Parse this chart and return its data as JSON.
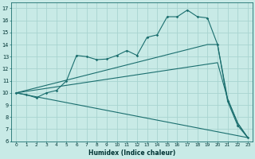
{
  "xlabel": "Humidex (Indice chaleur)",
  "bg_color": "#c8eae6",
  "grid_color": "#a8d4d0",
  "line_color": "#1a6e6e",
  "xlim_min": -0.5,
  "xlim_max": 23.5,
  "ylim_min": 6,
  "ylim_max": 17.5,
  "xticks": [
    0,
    1,
    2,
    3,
    4,
    5,
    6,
    7,
    8,
    9,
    10,
    11,
    12,
    13,
    14,
    15,
    16,
    17,
    18,
    19,
    20,
    21,
    22,
    23
  ],
  "yticks": [
    6,
    7,
    8,
    9,
    10,
    11,
    12,
    13,
    14,
    15,
    16,
    17
  ],
  "line1_x": [
    0,
    1,
    2,
    3,
    4,
    5,
    6,
    7,
    8,
    9,
    10,
    11,
    12,
    13,
    14,
    15,
    16,
    17,
    18,
    19,
    20,
    21,
    22,
    23
  ],
  "line1_y": [
    10.0,
    9.85,
    9.6,
    10.0,
    10.2,
    11.0,
    13.1,
    13.0,
    12.75,
    12.8,
    13.1,
    13.5,
    13.1,
    14.6,
    14.8,
    16.3,
    16.3,
    16.85,
    16.3,
    16.2,
    14.0,
    9.3,
    7.3,
    6.3
  ],
  "line2_x": [
    0,
    23
  ],
  "line2_y": [
    10.0,
    6.3
  ],
  "line3_x": [
    0,
    20,
    21,
    22,
    23
  ],
  "line3_y": [
    10.0,
    12.5,
    9.5,
    7.5,
    6.3
  ],
  "line4_x": [
    0,
    19,
    20,
    21,
    22,
    23
  ],
  "line4_y": [
    10.0,
    14.0,
    14.0,
    9.5,
    7.5,
    6.3
  ]
}
